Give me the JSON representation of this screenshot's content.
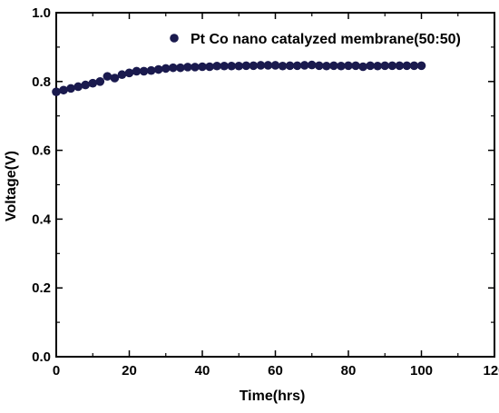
{
  "chart_data": {
    "type": "scatter",
    "xlabel": "Time(hrs)",
    "ylabel": "Voltage(V)",
    "xlim": [
      0,
      120
    ],
    "ylim": [
      0.0,
      1.0
    ],
    "xticks": [
      "0",
      "20",
      "40",
      "60",
      "80",
      "100",
      "120"
    ],
    "yticks": [
      "0.0",
      "0.2",
      "0.4",
      "0.6",
      "0.8",
      "1.0"
    ],
    "grid": false,
    "legend_position": "top-right",
    "series_color": "#1a1a4e",
    "series": [
      {
        "name": "Pt Co nano catalyzed membrane(50:50)",
        "x": [
          0,
          2,
          4,
          6,
          8,
          10,
          12,
          14,
          16,
          18,
          20,
          22,
          24,
          26,
          28,
          30,
          32,
          34,
          36,
          38,
          40,
          42,
          44,
          46,
          48,
          50,
          52,
          54,
          56,
          58,
          60,
          62,
          64,
          66,
          68,
          70,
          72,
          74,
          76,
          78,
          80,
          82,
          84,
          86,
          88,
          90,
          92,
          94,
          96,
          98,
          100
        ],
        "y": [
          0.77,
          0.775,
          0.78,
          0.785,
          0.79,
          0.795,
          0.8,
          0.815,
          0.81,
          0.82,
          0.825,
          0.83,
          0.83,
          0.832,
          0.835,
          0.838,
          0.84,
          0.84,
          0.842,
          0.842,
          0.843,
          0.843,
          0.845,
          0.845,
          0.845,
          0.845,
          0.846,
          0.846,
          0.847,
          0.847,
          0.847,
          0.845,
          0.846,
          0.846,
          0.847,
          0.848,
          0.846,
          0.845,
          0.846,
          0.845,
          0.846,
          0.846,
          0.843,
          0.846,
          0.845,
          0.846,
          0.846,
          0.846,
          0.846,
          0.846,
          0.846
        ]
      }
    ]
  }
}
